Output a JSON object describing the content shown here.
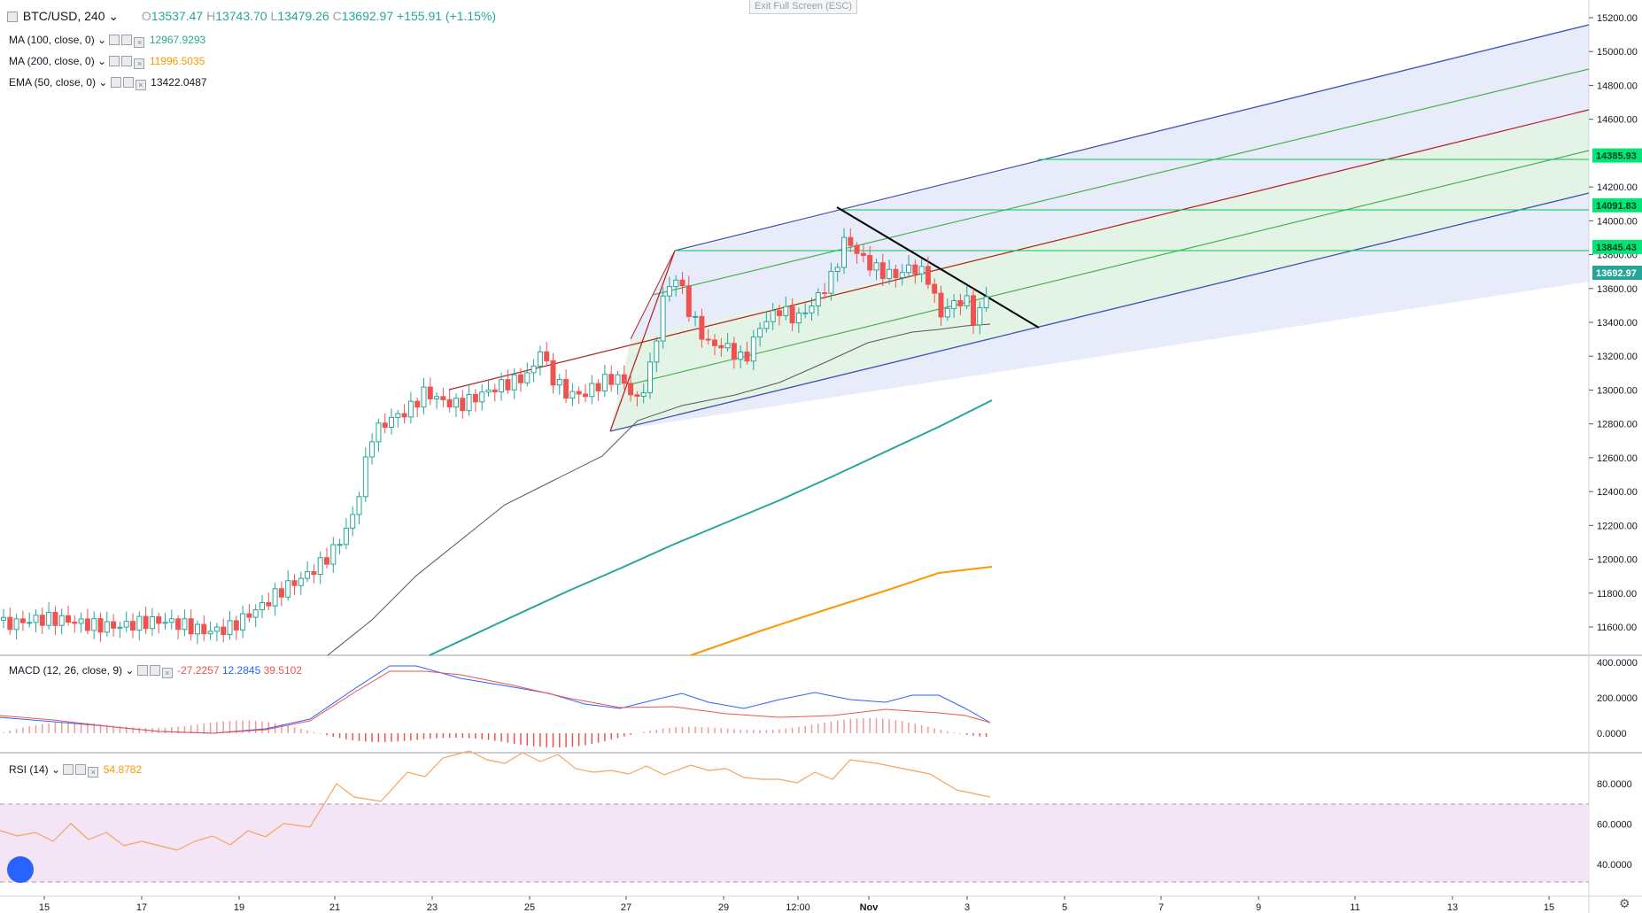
{
  "symbol": {
    "pair": "BTC/USD",
    "interval": "240"
  },
  "ohlc": {
    "o_label": "O",
    "o": "13537.47",
    "h_label": "H",
    "h": "13743.70",
    "l_label": "L",
    "l": "13479.26",
    "c_label": "C",
    "c": "13692.97",
    "change": "+155.91 (+1.15%)"
  },
  "overlay": {
    "exit_fullscreen": "Exit Full Screen (ESC)"
  },
  "indicators": [
    {
      "label": "MA (100, close, 0)",
      "value": "12967.9293",
      "color": "#26a69a"
    },
    {
      "label": "MA (200, close, 0)",
      "value": "11996.5035",
      "color": "#ff9800"
    },
    {
      "label": "EMA (50, close, 0)",
      "value": "13422.0487",
      "color": "#131722"
    }
  ],
  "macd": {
    "label": "MACD (12, 26, close, 9)",
    "hist": "-27.2257",
    "macd": "12.2845",
    "signal": "39.5102",
    "hist_color": "#ef5350",
    "macd_color": "#2962ff",
    "signal_color": "#ef5350"
  },
  "rsi": {
    "label": "RSI (14)",
    "value": "54.8782",
    "color": "#ff9800"
  },
  "price_axis": [
    "15200.00",
    "15000.00",
    "14800.00",
    "14600.00",
    "14200.00",
    "14000.00",
    "13800.00",
    "13600.00",
    "13400.00",
    "13200.00",
    "13000.00",
    "12800.00",
    "12600.00",
    "12400.00",
    "12200.00",
    "12000.00",
    "11800.00",
    "11600.00"
  ],
  "price_tags": [
    {
      "value": "14385.93",
      "bg": "#00e676",
      "fg": "#0b3d1f"
    },
    {
      "value": "14091.83",
      "bg": "#00e676",
      "fg": "#0b3d1f"
    },
    {
      "value": "13845.43",
      "bg": "#00e676",
      "fg": "#0b3d1f"
    },
    {
      "value": "13692.97",
      "bg": "#26a69a",
      "fg": "#ffffff"
    }
  ],
  "macd_axis": [
    "400.0000",
    "200.0000",
    "0.0000"
  ],
  "rsi_axis": [
    "80.0000",
    "60.0000",
    "40.0000"
  ],
  "time_axis": [
    "15",
    "17",
    "19",
    "21",
    "23",
    "25",
    "27",
    "29",
    "12:00",
    "Nov",
    "3",
    "5",
    "7",
    "9",
    "11",
    "13",
    "15"
  ],
  "colors": {
    "up": "#26a69a",
    "down": "#ef5350",
    "pitchfork_outer": "#3f51b5",
    "pitchfork_mid": "#4caf50",
    "median": "#b71c1c",
    "hline": "#00e676"
  },
  "icons": {
    "collapse": "square-icon",
    "menu": "chevron-down-icon",
    "toggles": [
      "eye-icon",
      "gear-icon",
      "close-icon"
    ],
    "logo": "tradingview-logo-icon",
    "settings": "gear-icon"
  }
}
